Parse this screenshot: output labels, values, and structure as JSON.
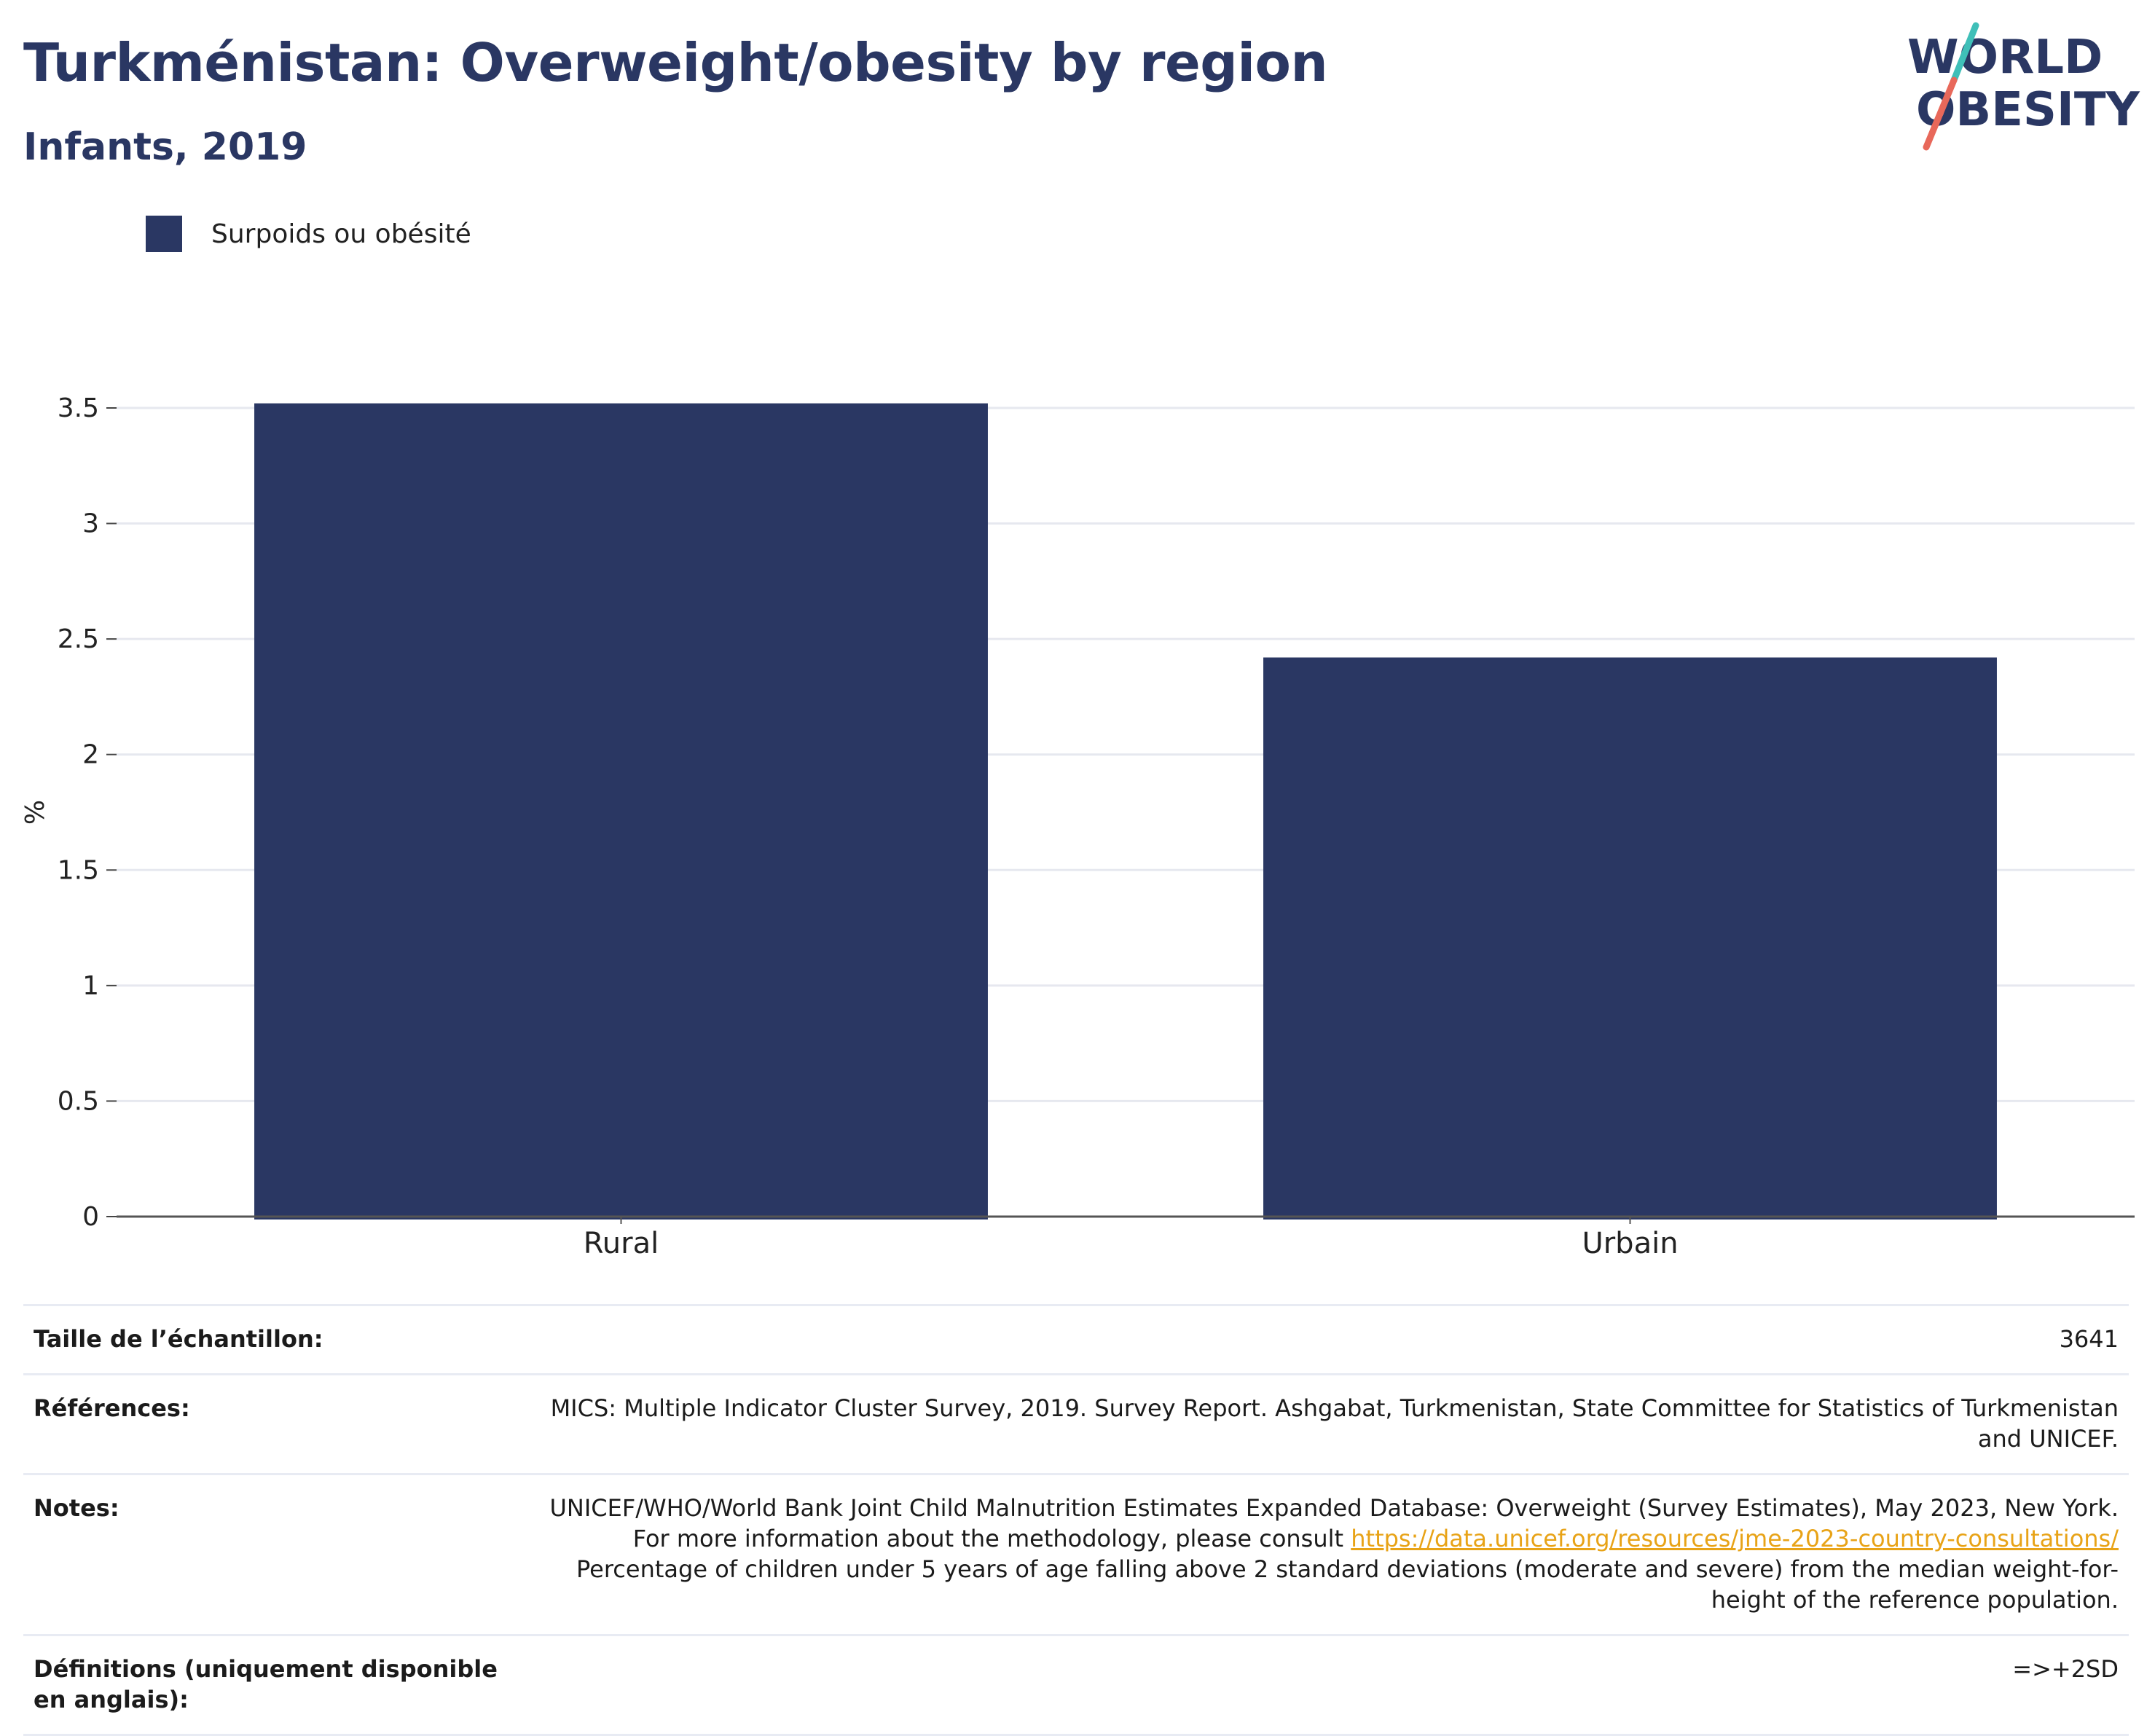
{
  "header": {
    "title": "Turkménistan: Overweight/obesity by region",
    "subtitle": "Infants, 2019"
  },
  "logo": {
    "line1": "WORLD",
    "line2": "OBESITY"
  },
  "colors": {
    "bar": "#2a3763",
    "title": "#2a3763",
    "logo_slash_top": "#3fbfb8",
    "logo_slash_bottom": "#e8685a",
    "link": "#e8a317"
  },
  "chart_data": {
    "type": "bar",
    "categories": [
      "Rural",
      "Urbain"
    ],
    "series": [
      {
        "name": "Surpoids ou obésité",
        "values": [
          3.52,
          2.42
        ]
      }
    ],
    "ylabel": "%",
    "ylim": [
      0,
      3.5
    ],
    "yticks": [
      0,
      0.5,
      1,
      1.5,
      2,
      2.5,
      3,
      3.5
    ],
    "ytick_labels": [
      "0",
      "0.5",
      "1",
      "1.5",
      "2",
      "2.5",
      "3",
      "3.5"
    ],
    "grid": true,
    "legend_placement": "top-left"
  },
  "info": {
    "sample": {
      "label": "Taille de l’échantillon:",
      "value": "3641"
    },
    "references": {
      "label": "Références:",
      "value": "MICS: Multiple Indicator Cluster Survey, 2019. Survey Report. Ashgabat, Turkmenistan, State Committee for Statistics of Turkmenistan and UNICEF."
    },
    "notes": {
      "label": "Notes:",
      "text_before": "UNICEF/WHO/World Bank Joint Child Malnutrition Estimates Expanded Database: Overweight (Survey Estimates), May 2023, New York. For more information about the methodology, please consult ",
      "link": "https://data.unicef.org/resources/jme-2023-country-consultations/",
      "text_after": " Percentage of children under 5 years of age falling above 2 standard deviations (moderate and severe) from the median weight-for-height of the reference population."
    },
    "definitions": {
      "label": "Définitions (uniquement disponible en anglais):",
      "value": "=>+2SD"
    }
  }
}
